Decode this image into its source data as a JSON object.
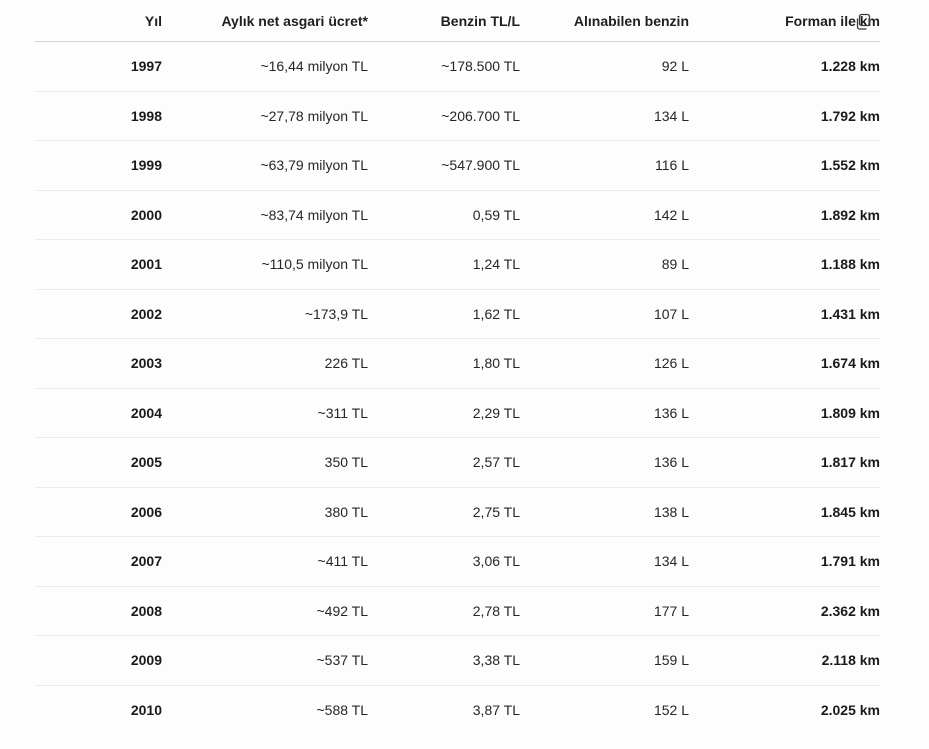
{
  "table": {
    "headers": [
      "Yıl",
      "Aylık net asgari ücret*",
      "Benzin TL/L",
      "Alınabilen benzin",
      "Forman ile km"
    ],
    "rows": [
      [
        "1997",
        "~16,44 milyon TL",
        "~178.500 TL",
        "92 L",
        "1.228 km"
      ],
      [
        "1998",
        "~27,78 milyon TL",
        "~206.700 TL",
        "134 L",
        "1.792 km"
      ],
      [
        "1999",
        "~63,79 milyon TL",
        "~547.900 TL",
        "116 L",
        "1.552 km"
      ],
      [
        "2000",
        "~83,74 milyon TL",
        "0,59 TL",
        "142 L",
        "1.892 km"
      ],
      [
        "2001",
        "~110,5 milyon TL",
        "1,24 TL",
        "89 L",
        "1.188 km"
      ],
      [
        "2002",
        "~173,9 TL",
        "1,62 TL",
        "107 L",
        "1.431 km"
      ],
      [
        "2003",
        "226 TL",
        "1,80 TL",
        "126 L",
        "1.674 km"
      ],
      [
        "2004",
        "~311 TL",
        "2,29 TL",
        "136 L",
        "1.809 km"
      ],
      [
        "2005",
        "350 TL",
        "2,57 TL",
        "136 L",
        "1.817 km"
      ],
      [
        "2006",
        "380 TL",
        "2,75 TL",
        "138 L",
        "1.845 km"
      ],
      [
        "2007",
        "~411 TL",
        "3,06 TL",
        "134 L",
        "1.791 km"
      ],
      [
        "2008",
        "~492 TL",
        "2,78 TL",
        "177 L",
        "2.362 km"
      ],
      [
        "2009",
        "~537 TL",
        "3,38 TL",
        "159 L",
        "2.118 km"
      ],
      [
        "2010",
        "~588 TL",
        "3,87 TL",
        "152 L",
        "2.025 km"
      ]
    ]
  },
  "toolbar": {
    "copy_icon": "copy-icon"
  }
}
